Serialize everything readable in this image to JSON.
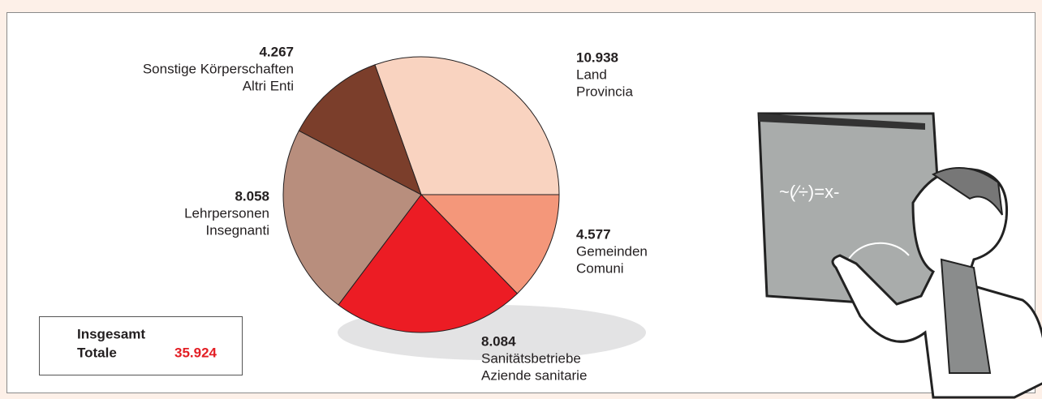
{
  "chart_data": {
    "type": "pie",
    "categories": [
      [
        "Land",
        "Provincia"
      ],
      [
        "Gemeinden",
        "Comuni"
      ],
      [
        "Sanitätsbetriebe",
        "Aziende sanitarie"
      ],
      [
        "Lehrpersonen",
        "Insegnanti"
      ],
      [
        "Sonstige Körperschaften",
        "Altri Enti"
      ]
    ],
    "values": [
      10938,
      4577,
      8084,
      8058,
      4267
    ],
    "value_labels": [
      "10.938",
      "4.577",
      "8.084",
      "8.058",
      "4.267"
    ],
    "colors": [
      "#f9d3c0",
      "#f4977a",
      "#ec1c24",
      "#b88e7d",
      "#7b3e2b"
    ],
    "total_title": [
      "Insgesamt",
      "Totale"
    ],
    "total": {
      "value": 35924,
      "label": "35.924"
    }
  }
}
